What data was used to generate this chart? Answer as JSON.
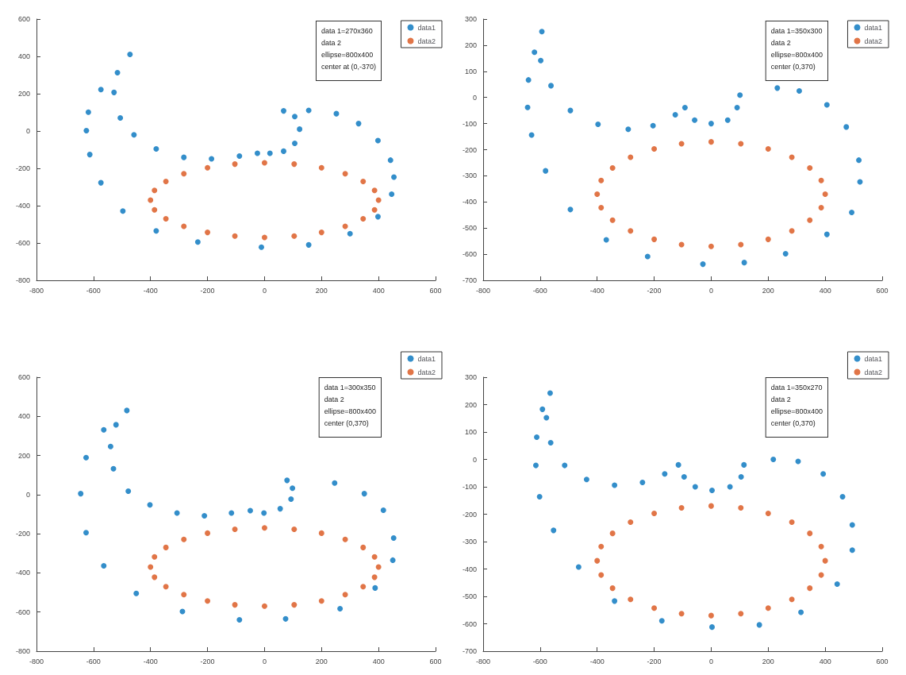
{
  "chart_data": [
    {
      "type": "scatter",
      "xlim": [
        -800,
        600
      ],
      "ylim": [
        -800,
        600
      ],
      "xticks": [
        -800,
        -600,
        -400,
        -200,
        0,
        200,
        400,
        600
      ],
      "yticks": [
        -800,
        -600,
        -400,
        -200,
        0,
        200,
        400,
        600
      ],
      "legend": "top right",
      "marker": "circle",
      "annotations": [
        "data 1=270x360",
        "data 2",
        "ellipse=800x400",
        "center at (0,-370)"
      ],
      "series": [
        {
          "name": "data1",
          "color": "#0072bd",
          "x": [
            -472,
            -574,
            -618,
            -625,
            -613,
            -574,
            -497,
            -380,
            -234,
            -11,
            155,
            300,
            398,
            446,
            454,
            442,
            398,
            330,
            252,
            155,
            67,
            106,
            123,
            106,
            67,
            19,
            -25,
            -88,
            -186,
            -283,
            -380,
            -458,
            -506,
            -528,
            -516
          ],
          "values": [
            411,
            222,
            101,
            2,
            -126,
            -277,
            -429,
            -535,
            -595,
            -622,
            -610,
            -550,
            -459,
            -338,
            -247,
            -156,
            -51,
            40,
            93,
            111,
            108,
            78,
            10,
            -66,
            -108,
            -119,
            -119,
            -134,
            -149,
            -141,
            -96,
            -20,
            70,
            207,
            313
          ]
        },
        {
          "name": "data2",
          "color": "#d95319",
          "x": [
            400,
            386,
            346,
            283,
            200,
            104,
            0,
            -104,
            -200,
            -283,
            -346,
            -386,
            -400,
            -386,
            -346,
            -283,
            -200,
            -104,
            0,
            104,
            200,
            283,
            346,
            386
          ],
          "values": [
            -370,
            -318,
            -270,
            -229,
            -197,
            -177,
            -170,
            -177,
            -197,
            -229,
            -270,
            -318,
            -370,
            -422,
            -470,
            -511,
            -543,
            -563,
            -570,
            -563,
            -543,
            -511,
            -470,
            -422
          ]
        }
      ]
    },
    {
      "type": "scatter",
      "xlim": [
        -800,
        600
      ],
      "ylim": [
        -700,
        300
      ],
      "xticks": [
        -800,
        -600,
        -400,
        -200,
        0,
        200,
        400,
        600
      ],
      "yticks": [
        -700,
        -600,
        -500,
        -400,
        -300,
        -200,
        -100,
        0,
        100,
        200,
        300
      ],
      "legend": "top right",
      "marker": "circle",
      "annotations": [
        "data 1=350x300",
        "data 2",
        "ellipse=800x400",
        "center (0,370)"
      ],
      "series": [
        {
          "name": "data1",
          "color": "#0072bd",
          "x": [
            -594,
            -620,
            -641,
            -644,
            -630,
            -581,
            -494,
            -368,
            -223,
            -29,
            116,
            261,
            406,
            493,
            522,
            518,
            474,
            406,
            309,
            232,
            101,
            91,
            58,
            0,
            -58,
            -92,
            -126,
            -204,
            -291,
            -397,
            -494,
            -562,
            -598
          ],
          "values": [
            252,
            173,
            67,
            -38,
            -144,
            -281,
            -429,
            -545,
            -609,
            -638,
            -632,
            -598,
            -524,
            -440,
            -323,
            -240,
            -113,
            -28,
            25,
            36,
            9,
            -39,
            -87,
            -100,
            -87,
            -39,
            -66,
            -108,
            -122,
            -103,
            -50,
            45,
            141
          ]
        },
        {
          "name": "data2",
          "color": "#d95319",
          "x": [
            400,
            386,
            346,
            283,
            200,
            104,
            0,
            -104,
            -200,
            -283,
            -346,
            -386,
            -400,
            -386,
            -346,
            -283,
            -200,
            -104,
            0,
            104,
            200,
            283,
            346,
            386
          ],
          "values": [
            -370,
            -318,
            -270,
            -229,
            -197,
            -177,
            -170,
            -177,
            -197,
            -229,
            -270,
            -318,
            -370,
            -422,
            -470,
            -511,
            -543,
            -563,
            -570,
            -563,
            -543,
            -511,
            -470,
            -422
          ]
        }
      ]
    },
    {
      "type": "scatter",
      "xlim": [
        -800,
        600
      ],
      "ylim": [
        -800,
        600
      ],
      "xticks": [
        -800,
        -600,
        -400,
        -200,
        0,
        200,
        400,
        600
      ],
      "yticks": [
        -800,
        -600,
        -400,
        -200,
        0,
        200,
        400,
        600
      ],
      "legend": "top right",
      "marker": "circle",
      "annotations": [
        "data 1=300x350",
        "data 2",
        "ellipse=800x400",
        "center (0,370)"
      ],
      "series": [
        {
          "name": "data1",
          "color": "#0072bd",
          "x": [
            -483,
            -564,
            -626,
            -645,
            -626,
            -564,
            -450,
            -288,
            -88,
            74,
            265,
            388,
            450,
            453,
            417,
            350,
            246,
            79,
            98,
            93,
            55,
            -2,
            -50,
            -116,
            -211,
            -307,
            -402,
            -478,
            -530,
            -540,
            -521
          ],
          "values": [
            430,
            331,
            189,
            5,
            -194,
            -364,
            -505,
            -597,
            -640,
            -635,
            -583,
            -477,
            -335,
            -222,
            -80,
            5,
            59,
            73,
            33,
            -23,
            -72,
            -94,
            -82,
            -94,
            -108,
            -94,
            -52,
            18,
            132,
            246,
            357
          ]
        },
        {
          "name": "data2",
          "color": "#d95319",
          "x": [
            400,
            386,
            346,
            283,
            200,
            104,
            0,
            -104,
            -200,
            -283,
            -346,
            -386,
            -400,
            -386,
            -346,
            -283,
            -200,
            -104,
            0,
            104,
            200,
            283,
            346,
            386
          ],
          "values": [
            -370,
            -318,
            -270,
            -229,
            -197,
            -177,
            -170,
            -177,
            -197,
            -229,
            -270,
            -318,
            -370,
            -422,
            -470,
            -511,
            -543,
            -563,
            -570,
            -563,
            -543,
            -511,
            -470,
            -422
          ]
        }
      ]
    },
    {
      "type": "scatter",
      "xlim": [
        -800,
        600
      ],
      "ylim": [
        -700,
        300
      ],
      "xticks": [
        -800,
        -600,
        -400,
        -200,
        0,
        200,
        400,
        600
      ],
      "yticks": [
        -700,
        -600,
        -500,
        -400,
        -300,
        -200,
        -100,
        0,
        100,
        200,
        300
      ],
      "legend": "top right",
      "marker": "circle",
      "annotations": [
        "data 1=350x270",
        "data 2",
        "ellipse=800x400",
        "center (0,370)"
      ],
      "series": [
        {
          "name": "data1",
          "color": "#0072bd",
          "x": [
            -565,
            -592,
            -612,
            -615,
            -602,
            -553,
            -465,
            -339,
            -173,
            3,
            169,
            315,
            442,
            495,
            495,
            461,
            393,
            305,
            218,
            115,
            105,
            66,
            3,
            -56,
            -95,
            -115,
            -163,
            -241,
            -339,
            -437,
            -514,
            -563,
            -578
          ],
          "values": [
            242,
            183,
            81,
            -22,
            -136,
            -259,
            -393,
            -517,
            -589,
            -612,
            -604,
            -558,
            -455,
            -331,
            -239,
            -136,
            -53,
            -7,
            0,
            -20,
            -64,
            -100,
            -113,
            -100,
            -64,
            -20,
            -53,
            -84,
            -94,
            -73,
            -22,
            61,
            152
          ]
        },
        {
          "name": "data2",
          "color": "#d95319",
          "x": [
            400,
            386,
            346,
            283,
            200,
            104,
            0,
            -104,
            -200,
            -283,
            -346,
            -386,
            -400,
            -386,
            -346,
            -283,
            -200,
            -104,
            0,
            104,
            200,
            283,
            346,
            386
          ],
          "values": [
            -370,
            -318,
            -270,
            -229,
            -197,
            -177,
            -170,
            -177,
            -197,
            -229,
            -270,
            -318,
            -370,
            -422,
            -470,
            -511,
            -543,
            -563,
            -570,
            -563,
            -543,
            -511,
            -470,
            -422
          ]
        }
      ]
    }
  ]
}
